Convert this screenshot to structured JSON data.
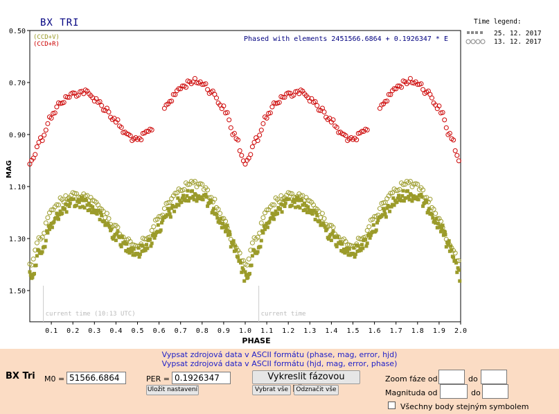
{
  "chart_data": {
    "type": "scatter",
    "title": "BX TRI",
    "annotation": "Phased with elements 2451566.6864 + 0.1926347 * E",
    "xlabel": "PHASE",
    "ylabel": "MAG",
    "xlim": [
      0.0,
      2.0
    ],
    "ylim": [
      1.62,
      0.5
    ],
    "y_inverted": true,
    "xticks": [
      "0.1",
      "0.2",
      "0.3",
      "0.4",
      "0.5",
      "0.6",
      "0.7",
      "0.8",
      "0.9",
      "1.0",
      "1.1",
      "1.2",
      "1.3",
      "1.4",
      "1.5",
      "1.6",
      "1.7",
      "1.8",
      "1.9",
      "2.0"
    ],
    "yticks": [
      "0.50",
      "0.70",
      "0.90",
      "1.10",
      "1.30",
      "1.50"
    ],
    "grid": false,
    "legend_filters": [
      "(CCD+V)",
      "(CCD+R)"
    ],
    "time_legend_title": "Time legend:",
    "time_legend": [
      "25. 12. 2017",
      "13. 12. 2017"
    ],
    "current_time_labels": [
      "current time (10:13 UTC)",
      "current time"
    ],
    "current_time_phase": 0.063,
    "period_repeat": 1.0,
    "series": [
      {
        "filter": "R",
        "session": "13. 12. 2017",
        "symbol": "open-circle",
        "color": "#cc0000",
        "curve": [
          [
            0.0,
            1.01
          ],
          [
            0.05,
            0.92
          ],
          [
            0.1,
            0.83
          ],
          [
            0.15,
            0.77
          ],
          [
            0.2,
            0.745
          ],
          [
            0.25,
            0.735
          ],
          [
            0.3,
            0.76
          ],
          [
            0.35,
            0.8
          ],
          [
            0.4,
            0.85
          ],
          [
            0.45,
            0.9
          ],
          [
            0.5,
            0.925
          ],
          [
            0.55,
            0.89
          ],
          [
            0.6,
            0.83
          ],
          [
            0.65,
            0.77
          ],
          [
            0.7,
            0.72
          ],
          [
            0.75,
            0.695
          ],
          [
            0.8,
            0.7
          ],
          [
            0.85,
            0.74
          ],
          [
            0.9,
            0.8
          ],
          [
            0.95,
            0.9
          ],
          [
            1.0,
            1.01
          ]
        ]
      },
      {
        "filter": "V",
        "session": "25. 12. 2017",
        "symbol": "filled-square",
        "color": "#9b9b2a",
        "curve": [
          [
            0.0,
            1.45
          ],
          [
            0.05,
            1.35
          ],
          [
            0.1,
            1.25
          ],
          [
            0.15,
            1.19
          ],
          [
            0.2,
            1.165
          ],
          [
            0.25,
            1.16
          ],
          [
            0.3,
            1.19
          ],
          [
            0.35,
            1.24
          ],
          [
            0.4,
            1.29
          ],
          [
            0.45,
            1.33
          ],
          [
            0.5,
            1.355
          ],
          [
            0.55,
            1.32
          ],
          [
            0.6,
            1.26
          ],
          [
            0.65,
            1.2
          ],
          [
            0.7,
            1.155
          ],
          [
            0.75,
            1.13
          ],
          [
            0.8,
            1.14
          ],
          [
            0.85,
            1.18
          ],
          [
            0.9,
            1.25
          ],
          [
            0.95,
            1.33
          ],
          [
            1.0,
            1.45
          ]
        ]
      },
      {
        "filter": "V",
        "session": "13. 12. 2017",
        "symbol": "open-circle",
        "color": "#9b9b2a",
        "curve": [
          [
            0.0,
            1.4
          ],
          [
            0.05,
            1.3
          ],
          [
            0.1,
            1.2
          ],
          [
            0.15,
            1.15
          ],
          [
            0.2,
            1.135
          ],
          [
            0.25,
            1.135
          ],
          [
            0.3,
            1.16
          ],
          [
            0.35,
            1.21
          ],
          [
            0.4,
            1.26
          ],
          [
            0.45,
            1.31
          ],
          [
            0.5,
            1.33
          ],
          [
            0.55,
            1.29
          ],
          [
            0.6,
            1.22
          ],
          [
            0.65,
            1.15
          ],
          [
            0.7,
            1.105
          ],
          [
            0.75,
            1.085
          ],
          [
            0.8,
            1.1
          ],
          [
            0.85,
            1.15
          ],
          [
            0.9,
            1.23
          ],
          [
            0.95,
            1.32
          ],
          [
            1.0,
            1.4
          ]
        ]
      }
    ]
  },
  "form": {
    "star_name": "BX Tri",
    "link_phase": "Vypsat zdrojová data v ASCII formátu (phase, mag, error, hjd)",
    "link_hjd": "Vypsat zdrojová data v ASCII formátu (hjd, mag, error, phase)",
    "m0_label": "M0 =",
    "m0_value": "51566.6864",
    "per_label": "PER =",
    "per_value": "0.1926347",
    "save_button": "Uložit nastavení",
    "draw_button": "Vykreslit fázovou křivku",
    "select_all": "Vybrat vše",
    "deselect_all": "Odznačit vše",
    "zoom_label": "Zoom fáze od",
    "mag_label": "Magnituda od",
    "to_label": "do",
    "same_symbol_label": "Všechny body stejným symbolem"
  }
}
